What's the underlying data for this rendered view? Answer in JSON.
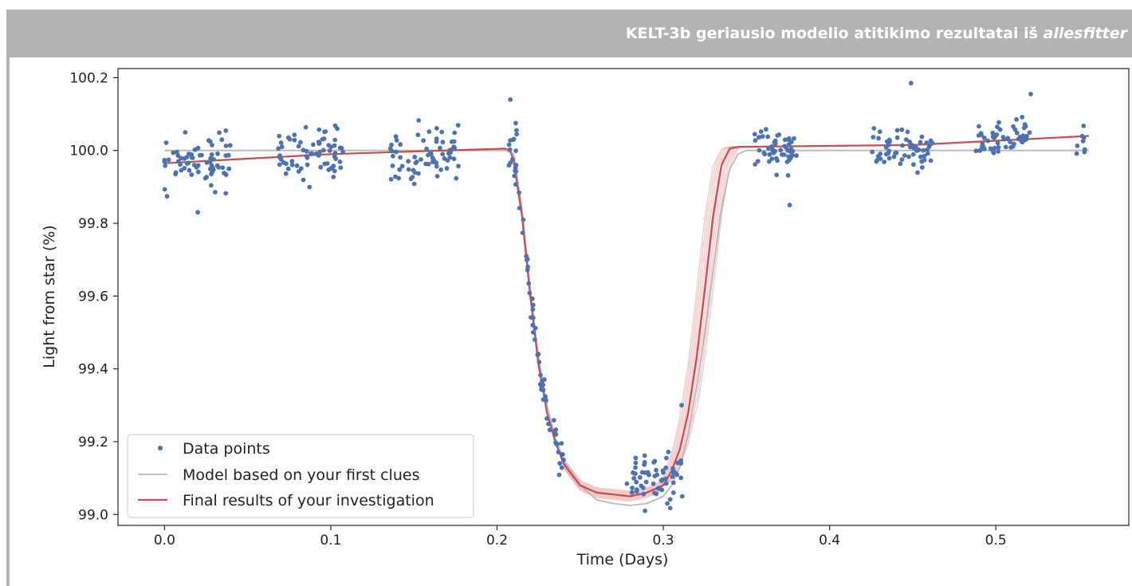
{
  "header": {
    "title_prefix": "KELT-3b geriausio modelio atitikimo rezultatai iš ",
    "title_italic": "allesfitter"
  },
  "colors": {
    "header_bg": "#b3b3b3",
    "data_points": "#4c72b0",
    "model_first_clues": "#b0b0b0",
    "final_results": "#c44e52",
    "final_results_fan": "#e8a5a8"
  },
  "chart_data": {
    "type": "scatter",
    "title": "",
    "xlabel": "Time (Days)",
    "ylabel": "Light from star (%)",
    "xlim": [
      -0.028,
      0.58
    ],
    "ylim": [
      98.97,
      100.225
    ],
    "xticks": [
      0.0,
      0.1,
      0.2,
      0.3,
      0.4,
      0.5
    ],
    "xtick_labels": [
      "0.0",
      "0.1",
      "0.2",
      "0.3",
      "0.4",
      "0.5"
    ],
    "yticks": [
      99.0,
      99.2,
      99.4,
      99.6,
      99.8,
      100.0,
      100.2
    ],
    "ytick_labels": [
      "99.0",
      "99.2",
      "99.4",
      "99.6",
      "99.8",
      "100.0",
      "100.2"
    ],
    "grid": false,
    "legend_position": "lower-left",
    "legend": [
      "Data points",
      "Model based on your first clues",
      "Final results of your investigation"
    ],
    "series": [
      {
        "name": "Data points",
        "kind": "scatter",
        "clusters": [
          {
            "x_range": [
              0.0,
              0.04
            ],
            "y_center": 99.965,
            "spread": 0.06,
            "count": 70
          },
          {
            "x_range": [
              0.068,
              0.108
            ],
            "y_center": 99.99,
            "spread": 0.06,
            "count": 70
          },
          {
            "x_range": [
              0.135,
              0.178
            ],
            "y_center": 99.99,
            "spread": 0.06,
            "count": 70
          },
          {
            "x_range": [
              0.207,
              0.212
            ],
            "y_center": 100.0,
            "spread": 0.06,
            "count": 12
          },
          {
            "x_range": [
              0.21,
              0.24
            ],
            "y_center": null,
            "spread": 0.05,
            "count": 60,
            "follows": "Final results of your investigation"
          },
          {
            "x_range": [
              0.278,
              0.312
            ],
            "y_center": 99.1,
            "spread": 0.06,
            "count": 60
          },
          {
            "x_range": [
              0.355,
              0.382
            ],
            "y_center": 100.0,
            "spread": 0.05,
            "count": 55
          },
          {
            "x_range": [
              0.425,
              0.462
            ],
            "y_center": 100.01,
            "spread": 0.05,
            "count": 60
          },
          {
            "x_range": [
              0.488,
              0.521
            ],
            "y_center": 100.03,
            "spread": 0.05,
            "count": 55
          },
          {
            "x_range": [
              0.548,
              0.556
            ],
            "y_center": 100.02,
            "spread": 0.06,
            "count": 8
          }
        ],
        "notable_points": [
          [
            0.02,
            99.83
          ],
          [
            0.208,
            100.14
          ],
          [
            0.449,
            100.185
          ],
          [
            0.521,
            100.155
          ],
          [
            0.376,
            99.85
          ],
          [
            0.311,
            99.3
          ],
          [
            0.289,
            99.01
          ]
        ]
      },
      {
        "name": "Model based on your first clues",
        "kind": "line",
        "x": [
          0.0,
          0.205,
          0.21,
          0.215,
          0.22,
          0.225,
          0.23,
          0.235,
          0.24,
          0.245,
          0.25,
          0.26,
          0.27,
          0.28,
          0.29,
          0.3,
          0.305,
          0.31,
          0.315,
          0.32,
          0.325,
          0.33,
          0.335,
          0.34,
          0.345,
          0.35,
          0.556
        ],
        "y": [
          100.0,
          100.0,
          99.99,
          99.84,
          99.62,
          99.43,
          99.3,
          99.21,
          99.15,
          99.11,
          99.08,
          99.04,
          99.03,
          99.025,
          99.03,
          99.05,
          99.08,
          99.13,
          99.22,
          99.35,
          99.5,
          99.67,
          99.84,
          99.95,
          99.99,
          100.0,
          100.0
        ]
      },
      {
        "name": "Final results of your investigation",
        "kind": "line",
        "x": [
          0.0,
          0.1,
          0.205,
          0.208,
          0.21,
          0.215,
          0.22,
          0.225,
          0.23,
          0.235,
          0.24,
          0.25,
          0.26,
          0.27,
          0.28,
          0.29,
          0.3,
          0.305,
          0.31,
          0.315,
          0.32,
          0.325,
          0.33,
          0.335,
          0.34,
          0.345,
          0.45,
          0.556
        ],
        "y": [
          99.965,
          99.99,
          100.005,
          100.0,
          99.97,
          99.82,
          99.6,
          99.41,
          99.28,
          99.2,
          99.14,
          99.08,
          99.06,
          99.055,
          99.05,
          99.06,
          99.08,
          99.12,
          99.18,
          99.28,
          99.43,
          99.62,
          99.82,
          99.96,
          100.005,
          100.01,
          100.015,
          100.04
        ]
      }
    ]
  }
}
